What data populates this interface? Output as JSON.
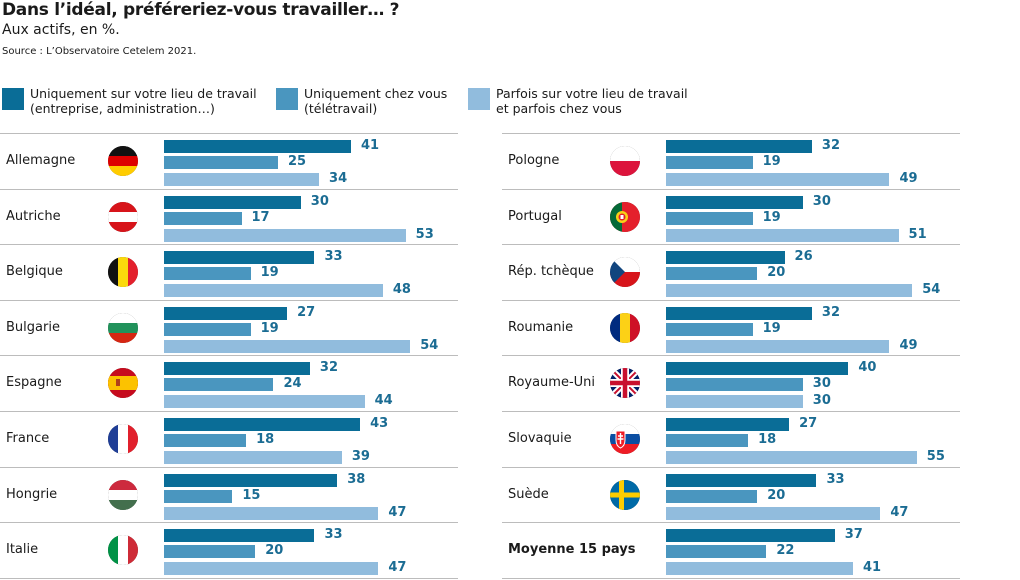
{
  "header": {
    "title": "Dans l’idéal, préféreriez-vous travailler… ?",
    "subtitle": "Aux actifs, en %.",
    "source": "Source : L’Observatoire Cetelem 2021."
  },
  "legend": [
    {
      "label": "Uniquement sur votre lieu de travail\n(entreprise, administration…)",
      "color": "#0a6d97"
    },
    {
      "label": "Uniquement chez vous\n(télétravail)",
      "color": "#4a96bf"
    },
    {
      "label": "Parfois sur votre lieu de travail\net parfois chez vous",
      "color": "#91bcdd"
    }
  ],
  "chart_data": {
    "type": "bar",
    "orientation": "horizontal",
    "title": "Dans l’idéal, préféreriez-vous travailler… ?",
    "subtitle": "Aux actifs, en %.",
    "series_names": [
      "Uniquement sur votre lieu de travail (entreprise, administration…)",
      "Uniquement chez vous (télétravail)",
      "Parfois sur votre lieu de travail et parfois chez vous"
    ],
    "panels": [
      {
        "rows": [
          {
            "country": "Allemagne",
            "flag": "germany-flag-icon",
            "values": [
              41,
              25,
              34
            ]
          },
          {
            "country": "Autriche",
            "flag": "austria-flag-icon",
            "values": [
              30,
              17,
              53
            ]
          },
          {
            "country": "Belgique",
            "flag": "belgium-flag-icon",
            "values": [
              33,
              19,
              48
            ]
          },
          {
            "country": "Bulgarie",
            "flag": "bulgaria-flag-icon",
            "values": [
              27,
              19,
              54
            ]
          },
          {
            "country": "Espagne",
            "flag": "spain-flag-icon",
            "values": [
              32,
              24,
              44
            ]
          },
          {
            "country": "France",
            "flag": "france-flag-icon",
            "values": [
              43,
              18,
              39
            ]
          },
          {
            "country": "Hongrie",
            "flag": "hungary-flag-icon",
            "values": [
              38,
              15,
              47
            ]
          },
          {
            "country": "Italie",
            "flag": "italy-flag-icon",
            "values": [
              33,
              20,
              47
            ]
          }
        ]
      },
      {
        "rows": [
          {
            "country": "Pologne",
            "flag": "poland-flag-icon",
            "values": [
              32,
              19,
              49
            ]
          },
          {
            "country": "Portugal",
            "flag": "portugal-flag-icon",
            "values": [
              30,
              19,
              51
            ]
          },
          {
            "country": "Rép. tchèque",
            "flag": "czech-flag-icon",
            "values": [
              26,
              20,
              54
            ]
          },
          {
            "country": "Roumanie",
            "flag": "romania-flag-icon",
            "values": [
              32,
              19,
              49
            ]
          },
          {
            "country": "Royaume-Uni",
            "flag": "uk-flag-icon",
            "values": [
              40,
              30,
              30
            ]
          },
          {
            "country": "Slovaquie",
            "flag": "slovakia-flag-icon",
            "values": [
              27,
              18,
              55
            ]
          },
          {
            "country": "Suède",
            "flag": "sweden-flag-icon",
            "values": [
              33,
              20,
              47
            ]
          },
          {
            "country": "Moyenne 15 pays",
            "flag": "",
            "bold": true,
            "values": [
              37,
              22,
              41
            ]
          }
        ]
      }
    ],
    "xlim": [
      0,
      60
    ],
    "grid": false,
    "legend_position": "top"
  }
}
